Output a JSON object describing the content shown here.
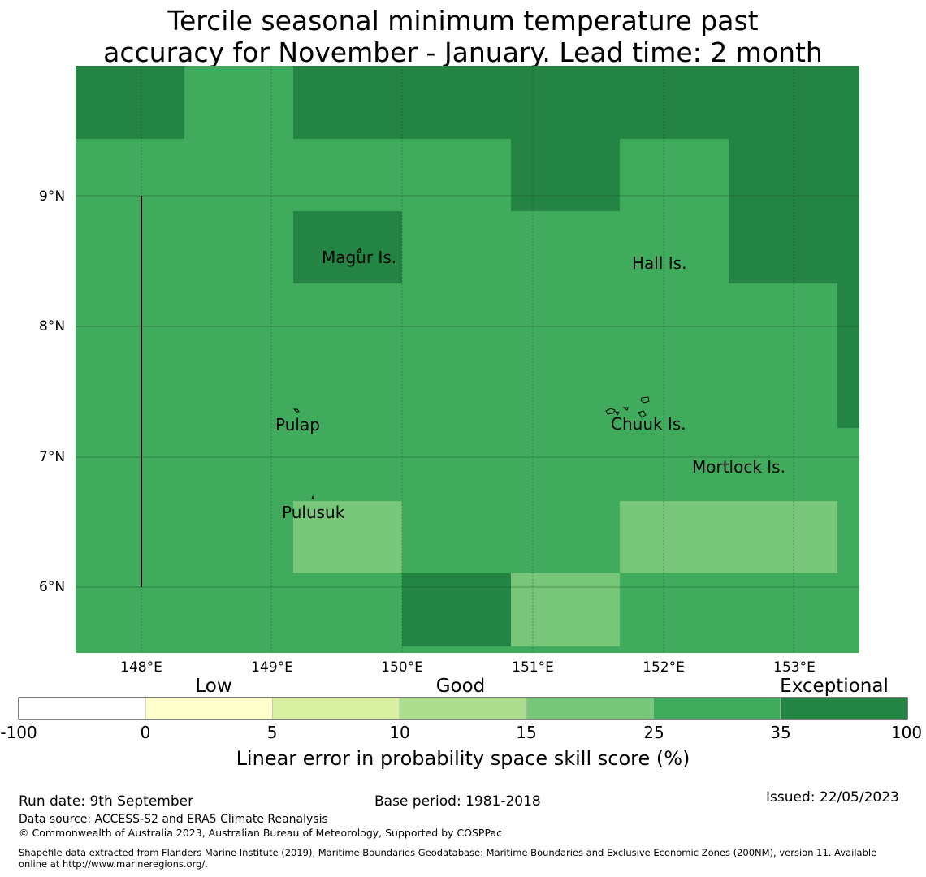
{
  "title": {
    "line1": "Tercile seasonal minimum temperature past",
    "line2": "accuracy for November - January. Lead time: 2 month"
  },
  "map": {
    "lat_labels": [
      "9°N",
      "8°N",
      "7°N",
      "6°N"
    ],
    "lon_labels": [
      "148°E",
      "149°E",
      "150°E",
      "151°E",
      "152°E",
      "153°E"
    ],
    "lon_range": [
      147.5,
      153.5
    ],
    "lat_range": [
      5.5,
      10.0
    ],
    "places": [
      {
        "name": "Magur Is."
      },
      {
        "name": "Hall Is."
      },
      {
        "name": "Pulap"
      },
      {
        "name": "Chuuk Is."
      },
      {
        "name": "Mortlock Is."
      },
      {
        "name": "Pulusuk"
      }
    ],
    "grid_colors": {
      "cat_25_35": "#41ab5d",
      "cat_35_100": "#238443",
      "cat_15_25": "#78c679"
    }
  },
  "legend": {
    "categories": [
      "Low",
      "Good",
      "Exceptional"
    ],
    "ticks": [
      "-100",
      "0",
      "5",
      "10",
      "15",
      "25",
      "35",
      "100"
    ],
    "colors": [
      "#ffffff",
      "#ffffcc",
      "#d9f0a3",
      "#addd8e",
      "#78c679",
      "#41ab5d",
      "#238443"
    ],
    "label": "Linear error in probability space skill score (%)"
  },
  "footer": {
    "run_date": "Run date: 9th September",
    "base_period": "Base period: 1981-2018",
    "issued": "Issued: 22/05/2023",
    "data_source": "Data source: ACCESS-S2 and ERA5 Climate Reanalysis",
    "copyright": "© Commonwealth of Australia 2023, Australian Bureau of Meteorology, Supported by COSPPac",
    "shapefile_line1": "Shapefile data extracted from Flanders Marine Institute (2019), Maritime Boundaries Geodatabase: Maritime Boundaries and Exclusive Economic Zones (200NM), version 11. Available",
    "shapefile_line2": "online at http://www.marineregions.org/."
  }
}
